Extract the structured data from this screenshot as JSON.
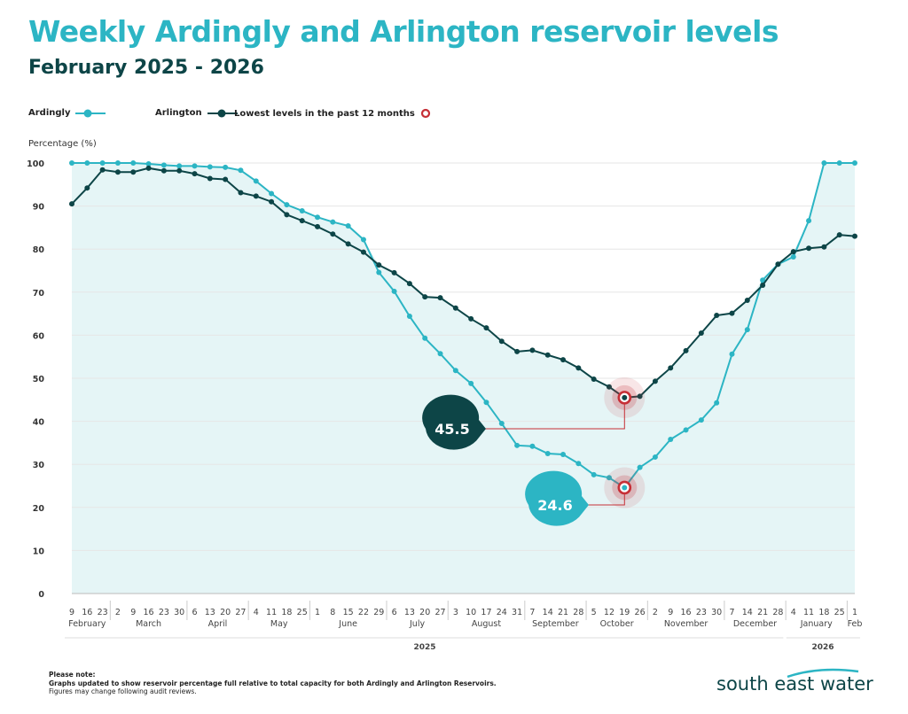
{
  "title": "Weekly Ardingly and Arlington reservoir levels",
  "subtitle": "February 2025 - 2026",
  "legend": {
    "ardingly": "Ardingly",
    "arlington": "Arlington",
    "lowest": "Lowest levels in the past 12 months"
  },
  "note": {
    "heading": "Please note:",
    "line1": "Graphs updated to show reservoir percentage full relative to total capacity for both Ardingly and Arlington Reservoirs.",
    "line2": "Figures may change following audit reviews."
  },
  "logo": "south east water",
  "colors": {
    "ardingly": "#2cb5c4",
    "arlington": "#0d4547",
    "lowest": "#c62f36",
    "fill": "#e5f5f6"
  },
  "chart_data": {
    "type": "line",
    "ylabel": "Percentage (%)",
    "ylim": [
      0,
      100
    ],
    "yticks": [
      0,
      10,
      20,
      30,
      40,
      50,
      60,
      70,
      80,
      90,
      100
    ],
    "grid": true,
    "legend_position": "top-left",
    "x_day_labels": [
      "9",
      "16",
      "23",
      "2",
      "9",
      "16",
      "23",
      "30",
      "6",
      "13",
      "20",
      "27",
      "4",
      "11",
      "18",
      "25",
      "1",
      "8",
      "15",
      "22",
      "29",
      "6",
      "13",
      "20",
      "27",
      "3",
      "10",
      "17",
      "24",
      "31",
      "7",
      "14",
      "21",
      "28",
      "5",
      "12",
      "19",
      "26",
      "2",
      "9",
      "16",
      "23",
      "30",
      "7",
      "14",
      "21",
      "28",
      "4",
      "11",
      "18",
      "25",
      "1"
    ],
    "months": [
      {
        "label": "February",
        "count": 3
      },
      {
        "label": "March",
        "count": 5
      },
      {
        "label": "April",
        "count": 4
      },
      {
        "label": "May",
        "count": 4
      },
      {
        "label": "June",
        "count": 5
      },
      {
        "label": "July",
        "count": 4
      },
      {
        "label": "August",
        "count": 5
      },
      {
        "label": "September",
        "count": 4
      },
      {
        "label": "October",
        "count": 4
      },
      {
        "label": "November",
        "count": 5
      },
      {
        "label": "December",
        "count": 4
      },
      {
        "label": "January",
        "count": 4
      },
      {
        "label": "Feb",
        "count": 1
      }
    ],
    "years": [
      {
        "label": "2025",
        "count": 47
      },
      {
        "label": "2026",
        "count": 5
      }
    ],
    "series": [
      {
        "name": "Ardingly",
        "values": [
          100,
          100,
          100,
          100,
          100,
          99.8,
          99.5,
          99.3,
          99.3,
          99.1,
          99,
          98.3,
          95.8,
          92.9,
          90.3,
          88.9,
          87.4,
          86.3,
          85.4,
          82.2,
          74.6,
          70.2,
          64.4,
          59.3,
          55.7,
          51.8,
          48.8,
          44.4,
          39.5,
          34.4,
          34.2,
          32.5,
          32.3,
          30.2,
          27.6,
          26.9,
          24.6,
          29.3,
          31.7,
          35.8,
          38,
          40.3,
          44.3,
          55.6,
          61.3,
          72.8,
          76.5,
          78.2,
          86.6,
          100,
          100,
          100
        ]
      },
      {
        "name": "Arlington",
        "values": [
          90.5,
          94.2,
          98.4,
          97.9,
          97.9,
          98.8,
          98.2,
          98.2,
          97.5,
          96.4,
          96.2,
          93.1,
          92.3,
          91,
          88,
          86.6,
          85.2,
          83.5,
          81.2,
          79.3,
          76.3,
          74.5,
          72,
          68.9,
          68.7,
          66.3,
          63.8,
          61.7,
          58.6,
          56.2,
          56.5,
          55.4,
          54.3,
          52.4,
          49.8,
          48,
          45.5,
          45.8,
          49.3,
          52.4,
          56.4,
          60.5,
          64.6,
          65.1,
          68.1,
          71.6,
          76.5,
          79.4,
          80.2,
          80.5,
          83.3,
          83
        ]
      }
    ],
    "annotations": [
      {
        "series": "Arlington",
        "label": "45.5",
        "x_label": "19 October"
      },
      {
        "series": "Ardingly",
        "label": "24.6",
        "x_label": "19 October"
      }
    ]
  }
}
